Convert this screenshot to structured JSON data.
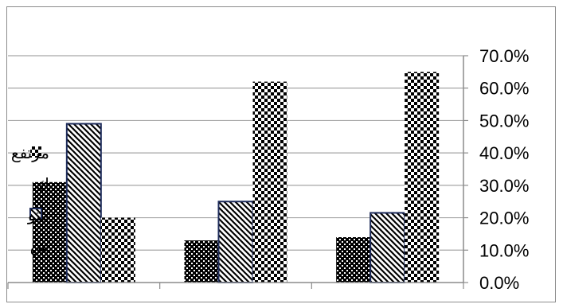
{
  "chart_data": {
    "type": "bar",
    "categories": [
      "",
      "",
      ""
    ],
    "series": [
      {
        "name": "س",
        "pattern": "dense-dots",
        "values": [
          0.31,
          0.13,
          0.14
        ]
      },
      {
        "name": "متو",
        "pattern": "diagonal",
        "values": [
          0.49,
          0.25,
          0.215
        ]
      },
      {
        "name": "مرتفع",
        "pattern": "checker",
        "values": [
          0.2,
          0.62,
          0.65
        ]
      }
    ],
    "title": "",
    "xlabel": "",
    "ylabel": "",
    "ylim": [
      0,
      0.7
    ],
    "y_ticks": [
      "0.0%",
      "10.0%",
      "20.0%",
      "30.0%",
      "40.0%",
      "50.0%",
      "60.0%",
      "70.0%"
    ],
    "grid": "horizontal",
    "legend_position": "left",
    "legend": [
      {
        "label": "مرتفع",
        "pattern": "checker"
      },
      {
        "label": "ك",
        "pattern": "none"
      },
      {
        "label": "متو",
        "pattern": "outline-blue"
      },
      {
        "label": "س",
        "pattern": "none"
      }
    ],
    "colors": {
      "bar_border": "#1f2d5c",
      "grid": "#a6a6a6",
      "axis": "#8c8c8c"
    }
  }
}
